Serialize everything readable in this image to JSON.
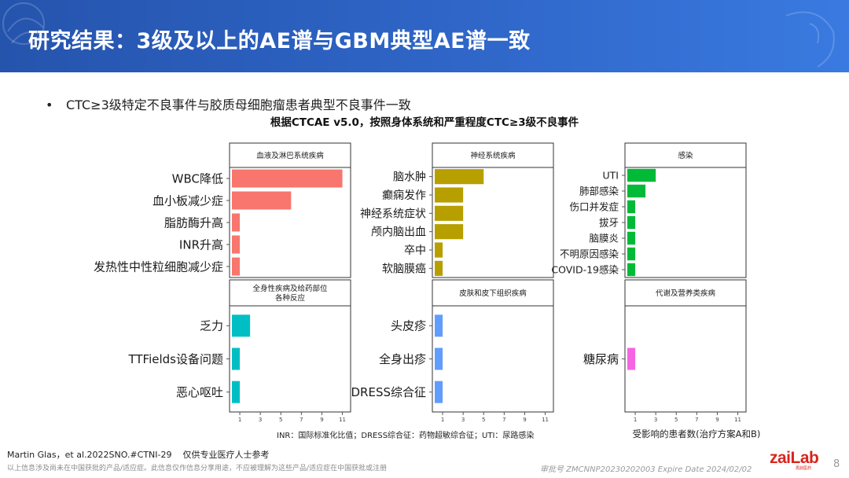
{
  "slide": {
    "title": "研究结果：3级及以上的AE谱与GBM典型AE谱一致",
    "bullet": "CTC≥3级特定不良事件与胶质母细胞瘤患者典型不良事件一致",
    "bullet_marker": "•"
  },
  "chart_data": {
    "type": "bar",
    "orientation": "horizontal",
    "title": "根据CTCAE v5.0，按照身体系统和严重程度CTC≥3级不良事件",
    "xlabel": "受影响的患者数(治疗方案A和B)",
    "xlim": [
      0,
      11.8
    ],
    "xticks": [
      1,
      3,
      5,
      7,
      9,
      11
    ],
    "grid": false,
    "legend": "none",
    "abbreviation_note": "INR：国际标准化比值；DRESS综合征：药物超敏综合征；UTI：尿路感染",
    "panels": [
      {
        "name": "血液及淋巴系统疾病",
        "color": "#f8766d",
        "categories": [
          "WBC降低",
          "血小板减少症",
          "脂肪酶升高",
          "INR升高",
          "发热性中性粒细胞减少症"
        ],
        "values": [
          11,
          6,
          1,
          1,
          1
        ]
      },
      {
        "name": "神经系统疾病",
        "color": "#b79f00",
        "categories": [
          "脑水肿",
          "癫痫发作",
          "神经系统症状",
          "颅内脑出血",
          "卒中",
          "软脑膜癌"
        ],
        "values": [
          5,
          3,
          3,
          3,
          1,
          1
        ]
      },
      {
        "name": "感染",
        "color": "#00ba38",
        "categories": [
          "UTI",
          "肺部感染",
          "伤口并发症",
          "拔牙",
          "脑膜炎",
          "不明原因感染",
          "COVID-19感染"
        ],
        "values": [
          3,
          2,
          1,
          1,
          1,
          1,
          1
        ]
      },
      {
        "name": "全身性疾病及给药部位各种反应",
        "name_lines": [
          "全身性疾病及给药部位",
          "各种反应"
        ],
        "color": "#00bfc4",
        "categories": [
          "乏力",
          "TTFields设备问题",
          "恶心呕吐"
        ],
        "values": [
          2,
          1,
          1
        ]
      },
      {
        "name": "皮肤和皮下组织疾病",
        "color": "#619cff",
        "categories": [
          "头皮疹",
          "全身出疹",
          "DRESS综合征"
        ],
        "values": [
          1,
          1,
          1
        ]
      },
      {
        "name": "代谢及营养类疾病",
        "color": "#f564e3",
        "categories": [
          "糖尿病"
        ],
        "values": [
          1
        ]
      }
    ]
  },
  "footer": {
    "reference": "Martin Glas，et al.2022SNO.#CTNI-29",
    "audience": "仅供专业医疗人士参考",
    "disclaimer": "以上信息涉及尚未在中国获批的产品/适应症。此信息仅作信息分享用途，不应被理解为这些产品/适应症在中国获批或注册",
    "approval": "审批号 ZMCNNP20230202003 Expire Date 2024/02/02",
    "page_number": "8"
  },
  "logo": {
    "text": "zaiLab",
    "subtext": "再鼎医药"
  }
}
